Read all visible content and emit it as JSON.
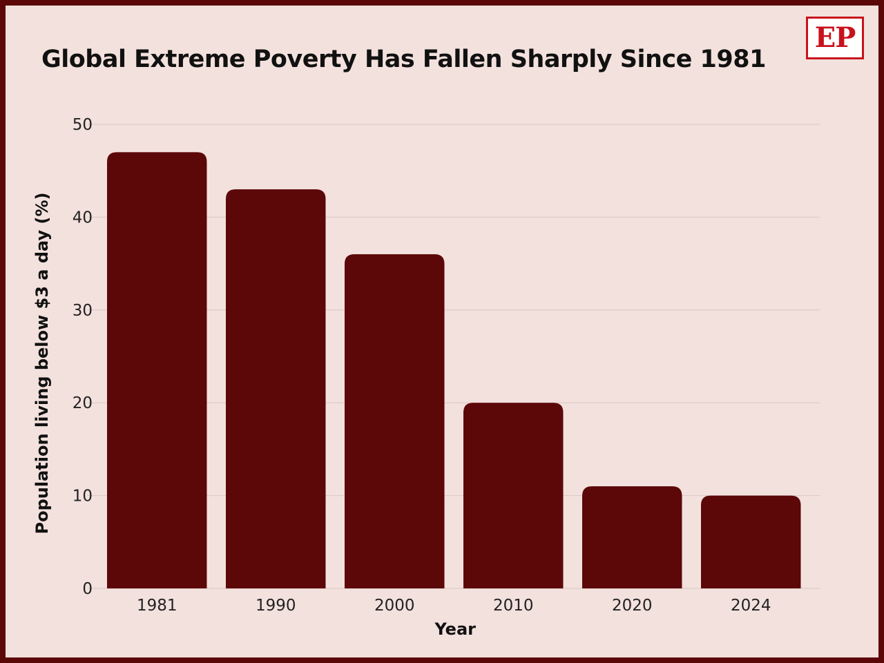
{
  "title": "Global Extreme Poverty Has Fallen Sharply Since 1981",
  "logo_text": "EP",
  "colors": {
    "border": "#5c0708",
    "background": "#f3e1dd",
    "bar": "#5c0708",
    "logo": "#c8121c",
    "grid": "#d9c6c2"
  },
  "chart_data": {
    "type": "bar",
    "title": "Global Extreme Poverty Has Fallen Sharply Since 1981",
    "categories": [
      "1981",
      "1990",
      "2000",
      "2010",
      "2020",
      "2024"
    ],
    "values": [
      47,
      43,
      36,
      20,
      11,
      10
    ],
    "xlabel": "Year",
    "ylabel": "Population living below $3 a day (%)",
    "ylim": [
      0,
      50
    ],
    "yticks": [
      0,
      10,
      20,
      30,
      40,
      50
    ],
    "grid": true,
    "legend": "none"
  }
}
